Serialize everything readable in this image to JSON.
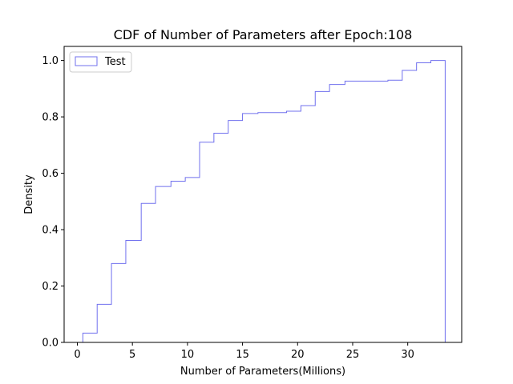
{
  "chart_data": {
    "type": "step",
    "title": "CDF of Number of Parameters after Epoch:108",
    "xlabel": "Number of Parameters(Millions)",
    "ylabel": "Density",
    "xlim": [
      -1.2,
      34.9
    ],
    "ylim": [
      0,
      1.05
    ],
    "xticks": [
      0,
      5,
      10,
      15,
      20,
      25,
      30
    ],
    "yticks": [
      0.0,
      0.2,
      0.4,
      0.6,
      0.8,
      1.0
    ],
    "xtick_labels": [
      "0",
      "5",
      "10",
      "15",
      "20",
      "25",
      "30"
    ],
    "ytick_labels": [
      "0.0",
      "0.2",
      "0.4",
      "0.6",
      "0.8",
      "1.0"
    ],
    "grid": false,
    "legend": {
      "position": "top-left",
      "entries": [
        "Test"
      ]
    },
    "series": [
      {
        "name": "Test",
        "color": "#7070ee",
        "bin_edges": [
          0.5,
          1.8,
          3.1,
          4.4,
          5.8,
          7.1,
          8.5,
          9.8,
          11.1,
          12.4,
          13.7,
          15.0,
          16.4,
          17.7,
          19.0,
          20.3,
          21.6,
          22.9,
          24.3,
          25.6,
          26.9,
          28.2,
          29.5,
          30.8,
          32.1,
          33.4
        ],
        "cumulative": [
          0.033,
          0.135,
          0.28,
          0.362,
          0.493,
          0.553,
          0.572,
          0.585,
          0.71,
          0.742,
          0.787,
          0.812,
          0.815,
          0.815,
          0.82,
          0.84,
          0.89,
          0.915,
          0.927,
          0.927,
          0.927,
          0.93,
          0.965,
          0.992,
          1.0
        ]
      }
    ]
  }
}
